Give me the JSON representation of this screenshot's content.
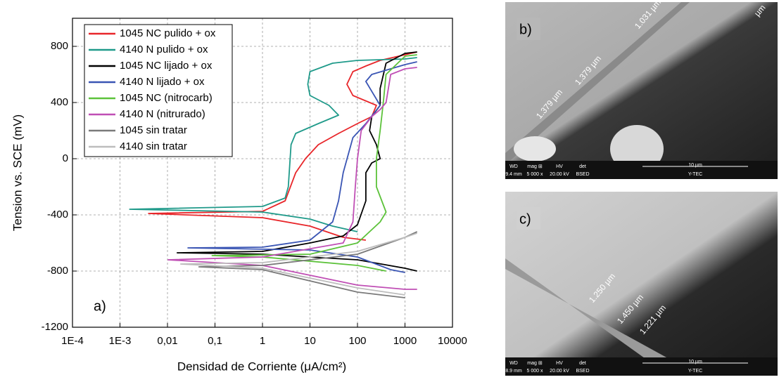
{
  "chart_data": {
    "type": "line",
    "log_x": true,
    "grid": true,
    "legend": "top-left",
    "x_label": "Densidad de Corriente (μA/cm²)",
    "y_label": "Tension vs. SCE (mV)",
    "annotation": "a)",
    "xlim": [
      0.0001,
      10000
    ],
    "ylim": [
      -1200,
      1000
    ],
    "xticks": [
      {
        "value": 0.0001,
        "label": "1E-4"
      },
      {
        "value": 0.001,
        "label": "1E-3"
      },
      {
        "value": 0.01,
        "label": "0,01"
      },
      {
        "value": 0.1,
        "label": "0,1"
      },
      1,
      10,
      100,
      1000,
      10000
    ],
    "yticks": [
      -1200,
      -800,
      -400,
      0,
      400,
      800
    ],
    "series": [
      {
        "name": "1045 NC pulido + ox",
        "color": "#e8262a",
        "x": [
          150,
          50,
          10,
          1,
          0.004,
          1,
          3,
          5,
          8,
          15,
          40,
          100,
          200,
          250,
          80,
          60,
          80,
          150,
          300,
          1000,
          1800
        ],
        "values": [
          -580,
          -560,
          -480,
          -420,
          -390,
          -375,
          -300,
          -100,
          0,
          100,
          180,
          250,
          300,
          380,
          450,
          530,
          620,
          660,
          700,
          740,
          760
        ]
      },
      {
        "name": "4140 N pulido + ox",
        "color": "#1f9a8a",
        "x": [
          100,
          30,
          10,
          1,
          0.0016,
          1,
          3,
          3.5,
          4,
          5,
          15,
          40,
          25,
          10,
          9,
          10,
          30,
          100,
          1000,
          1800
        ],
        "values": [
          -520,
          -480,
          -430,
          -380,
          -360,
          -340,
          -280,
          -200,
          100,
          180,
          250,
          310,
          380,
          450,
          530,
          620,
          680,
          700,
          710,
          720
        ]
      },
      {
        "name": "1045 NC lijado + ox",
        "color": "#000000",
        "x": [
          1800,
          1000,
          100,
          1,
          0.016,
          1,
          10,
          50,
          100,
          150,
          150,
          200,
          300,
          250,
          180,
          200,
          300,
          300,
          400,
          1000,
          1800
        ],
        "values": [
          -800,
          -780,
          -720,
          -680,
          -670,
          -660,
          -600,
          -550,
          -470,
          -300,
          -100,
          -30,
          0,
          100,
          200,
          300,
          380,
          500,
          680,
          750,
          760
        ]
      },
      {
        "name": "4140 N lijado + ox",
        "color": "#3a55b4",
        "x": [
          1000,
          500,
          100,
          10,
          0.027,
          1,
          10,
          30,
          40,
          50,
          80,
          150,
          300,
          150,
          200,
          500,
          1000,
          1800
        ],
        "values": [
          -810,
          -790,
          -700,
          -650,
          -635,
          -630,
          -580,
          -450,
          -300,
          -100,
          150,
          250,
          380,
          550,
          600,
          640,
          670,
          690
        ]
      },
      {
        "name": "1045 NC (nitrocarb)",
        "color": "#5cc23a",
        "x": [
          400,
          100,
          1,
          0.087,
          10,
          100,
          300,
          400,
          250,
          250,
          300,
          350,
          400,
          1000,
          1800
        ],
        "values": [
          -800,
          -760,
          -700,
          -690,
          -680,
          -600,
          -450,
          -380,
          -200,
          0,
          200,
          400,
          600,
          730,
          740
        ]
      },
      {
        "name": "4140 N (nitrurado)",
        "color": "#c04fb5",
        "x": [
          1800,
          1000,
          100,
          1,
          0.0103,
          1,
          50,
          80,
          90,
          100,
          120,
          200,
          300,
          400,
          500,
          1000,
          1800
        ],
        "values": [
          -930,
          -930,
          -900,
          -760,
          -720,
          -700,
          -600,
          -450,
          -200,
          0,
          200,
          300,
          350,
          400,
          600,
          640,
          650
        ]
      },
      {
        "name": "1045 sin tratar",
        "color": "#7a7a7a",
        "x": [
          1000,
          100,
          1,
          0.046,
          1,
          100,
          1000,
          1800
        ],
        "values": [
          -990,
          -950,
          -790,
          -770,
          -760,
          -680,
          -560,
          -520
        ]
      },
      {
        "name": "4140 sin tratar",
        "color": "#bdbdbd",
        "x": [
          1000,
          100,
          1,
          0.019,
          1,
          100,
          1000,
          1800
        ],
        "values": [
          -970,
          -920,
          -780,
          -750,
          -740,
          -660,
          -560,
          -530
        ]
      }
    ]
  },
  "panels": [
    {
      "tag": "b)",
      "measures": [
        "1.031 µm",
        "1.379 µm",
        "1.379 µm",
        "µm"
      ],
      "footer_labels": [
        "WD",
        "mag ⊞",
        "HV",
        "det"
      ],
      "footer_values": [
        "9.4 mm",
        "5 000 x",
        "20.00 kV",
        "BSED"
      ],
      "scale": "10 µm",
      "org": "Y-TEC"
    },
    {
      "tag": "c)",
      "measures": [
        "1.250 µm",
        "1.450 µm",
        "1.221 µm"
      ],
      "footer_labels": [
        "WD",
        "mag ⊞",
        "HV",
        "det"
      ],
      "footer_values": [
        "8.9 mm",
        "5 000 x",
        "20.00 kV",
        "BSED"
      ],
      "scale": "10 µm",
      "org": "Y-TEC"
    }
  ]
}
